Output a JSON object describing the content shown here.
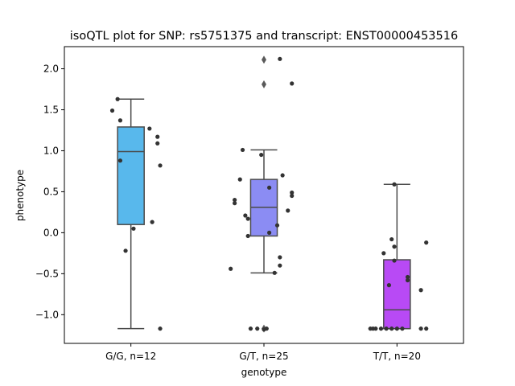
{
  "chart_data": {
    "type": "box",
    "title": "isoQTL plot for SNP: rs5751375 and transcript: ENST00000453516",
    "xlabel": "genotype",
    "ylabel": "phenotype",
    "ylim": [
      -1.35,
      2.27
    ],
    "yticks": [
      -1.0,
      -0.5,
      0.0,
      0.5,
      1.0,
      1.5,
      2.0
    ],
    "ytick_labels": [
      "−1.0",
      "−0.5",
      "0.0",
      "0.5",
      "1.0",
      "1.5",
      "2.0"
    ],
    "categories": [
      "G/G, n=12",
      "G/T, n=25",
      "T/T, n=20"
    ],
    "boxes": [
      {
        "category": "G/G, n=12",
        "color": "#58b8ec",
        "q1": 0.1,
        "median": 0.99,
        "q3": 1.29,
        "whisker_low": -1.17,
        "whisker_high": 1.63,
        "outliers": [],
        "points": [
          {
            "x": -0.1,
            "y": 1.63
          },
          {
            "x": -0.14,
            "y": 1.49
          },
          {
            "x": -0.08,
            "y": 1.37
          },
          {
            "x": 0.14,
            "y": 1.27
          },
          {
            "x": 0.2,
            "y": 1.17
          },
          {
            "x": 0.2,
            "y": 1.09
          },
          {
            "x": -0.08,
            "y": 0.88
          },
          {
            "x": 0.22,
            "y": 0.82
          },
          {
            "x": 0.16,
            "y": 0.13
          },
          {
            "x": 0.02,
            "y": 0.05
          },
          {
            "x": -0.04,
            "y": -0.22
          },
          {
            "x": 0.22,
            "y": -1.17
          }
        ]
      },
      {
        "category": "G/T, n=25",
        "color": "#8b8cf3",
        "q1": -0.04,
        "median": 0.31,
        "q3": 0.65,
        "whisker_low": -0.49,
        "whisker_high": 1.01,
        "outliers": [
          2.11,
          1.81,
          -1.17
        ],
        "points": [
          {
            "x": 0.12,
            "y": 2.12
          },
          {
            "x": 0.21,
            "y": 1.82
          },
          {
            "x": -0.16,
            "y": 1.01
          },
          {
            "x": -0.02,
            "y": 0.95
          },
          {
            "x": 0.14,
            "y": 0.7
          },
          {
            "x": -0.18,
            "y": 0.65
          },
          {
            "x": 0.04,
            "y": 0.55
          },
          {
            "x": 0.21,
            "y": 0.49
          },
          {
            "x": 0.21,
            "y": 0.45
          },
          {
            "x": -0.22,
            "y": 0.4
          },
          {
            "x": -0.22,
            "y": 0.36
          },
          {
            "x": 0.18,
            "y": 0.27
          },
          {
            "x": -0.14,
            "y": 0.21
          },
          {
            "x": -0.12,
            "y": 0.17
          },
          {
            "x": 0.1,
            "y": 0.09
          },
          {
            "x": 0.04,
            "y": 0.0
          },
          {
            "x": -0.12,
            "y": -0.04
          },
          {
            "x": 0.12,
            "y": -0.3
          },
          {
            "x": 0.12,
            "y": -0.4
          },
          {
            "x": -0.25,
            "y": -0.44
          },
          {
            "x": 0.08,
            "y": -0.49
          },
          {
            "x": -0.1,
            "y": -1.17
          },
          {
            "x": -0.05,
            "y": -1.17
          },
          {
            "x": 0.0,
            "y": -1.18
          },
          {
            "x": 0.02,
            "y": -1.17
          }
        ]
      },
      {
        "category": "T/T, n=20",
        "color": "#b84af5",
        "q1": -1.17,
        "median": -0.94,
        "q3": -0.33,
        "whisker_low": -1.17,
        "whisker_high": 0.59,
        "outliers": [],
        "points": [
          {
            "x": -0.02,
            "y": 0.59
          },
          {
            "x": -0.04,
            "y": -0.08
          },
          {
            "x": 0.22,
            "y": -0.12
          },
          {
            "x": -0.02,
            "y": -0.17
          },
          {
            "x": -0.1,
            "y": -0.25
          },
          {
            "x": -0.02,
            "y": -0.34
          },
          {
            "x": 0.08,
            "y": -0.54
          },
          {
            "x": 0.08,
            "y": -0.58
          },
          {
            "x": -0.06,
            "y": -0.64
          },
          {
            "x": 0.18,
            "y": -0.7
          },
          {
            "x": -0.2,
            "y": -1.17
          },
          {
            "x": -0.16,
            "y": -1.17
          },
          {
            "x": -0.12,
            "y": -1.17
          },
          {
            "x": -0.08,
            "y": -1.17
          },
          {
            "x": -0.04,
            "y": -1.17
          },
          {
            "x": 0.0,
            "y": -1.17
          },
          {
            "x": 0.04,
            "y": -1.17
          },
          {
            "x": 0.18,
            "y": -1.17
          },
          {
            "x": 0.22,
            "y": -1.17
          },
          {
            "x": -0.18,
            "y": -1.17
          }
        ]
      }
    ],
    "grid": false,
    "legend": "none"
  }
}
